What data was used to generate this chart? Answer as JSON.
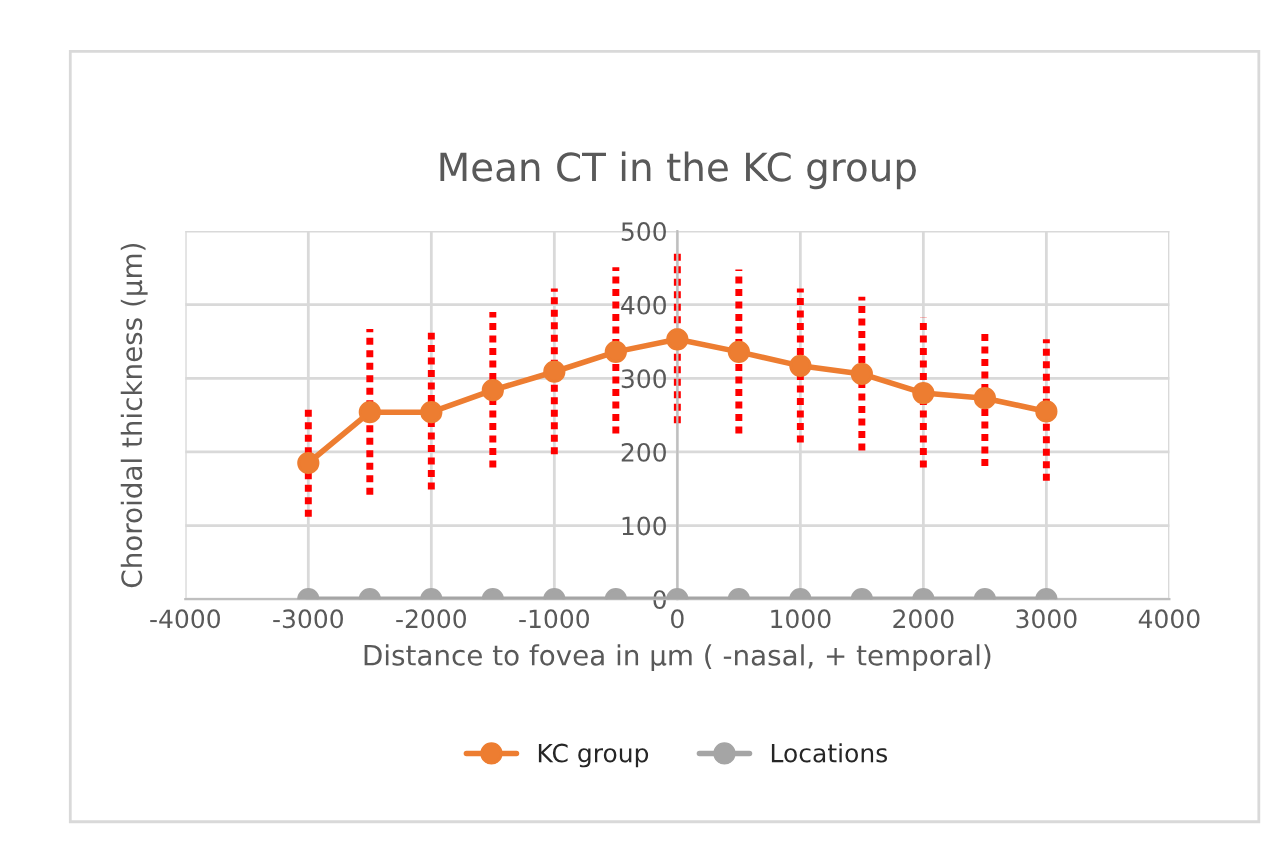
{
  "chart_data": {
    "type": "line",
    "title": "Mean CT in the KC group",
    "xlabel": "Distance to fovea in µm ( -nasal, + temporal)",
    "ylabel": "Choroidal thickness (µm)",
    "x": [
      -3000,
      -2500,
      -2000,
      -1500,
      -1000,
      -500,
      0,
      500,
      1000,
      1500,
      2000,
      2500,
      3000
    ],
    "series": [
      {
        "name": "KC group",
        "color": "#ed7d31",
        "values": [
          185,
          254,
          254,
          284,
          309,
          336,
          353,
          336,
          317,
          306,
          280,
          273,
          255
        ],
        "errors": [
          [
            112,
            259
          ],
          [
            142,
            367
          ],
          [
            149,
            362
          ],
          [
            179,
            390
          ],
          [
            197,
            422
          ],
          [
            225,
            451
          ],
          [
            239,
            470
          ],
          [
            225,
            448
          ],
          [
            213,
            422
          ],
          [
            202,
            411
          ],
          [
            179,
            383
          ],
          [
            181,
            367
          ],
          [
            161,
            353
          ]
        ]
      },
      {
        "name": "Locations",
        "color": "#a5a5a5",
        "values": [
          0,
          0,
          0,
          0,
          0,
          0,
          0,
          0,
          0,
          0,
          0,
          0,
          0
        ]
      }
    ],
    "xlim": [
      -4000,
      4000
    ],
    "xticks": [
      -4000,
      -3000,
      -2000,
      -1000,
      0,
      1000,
      2000,
      3000,
      4000
    ],
    "ylim": [
      0,
      500
    ],
    "yticks": [
      0,
      100,
      200,
      300,
      400,
      500
    ],
    "grid": true,
    "legend": "bottom",
    "marker": "circle",
    "line_style": "solid"
  }
}
